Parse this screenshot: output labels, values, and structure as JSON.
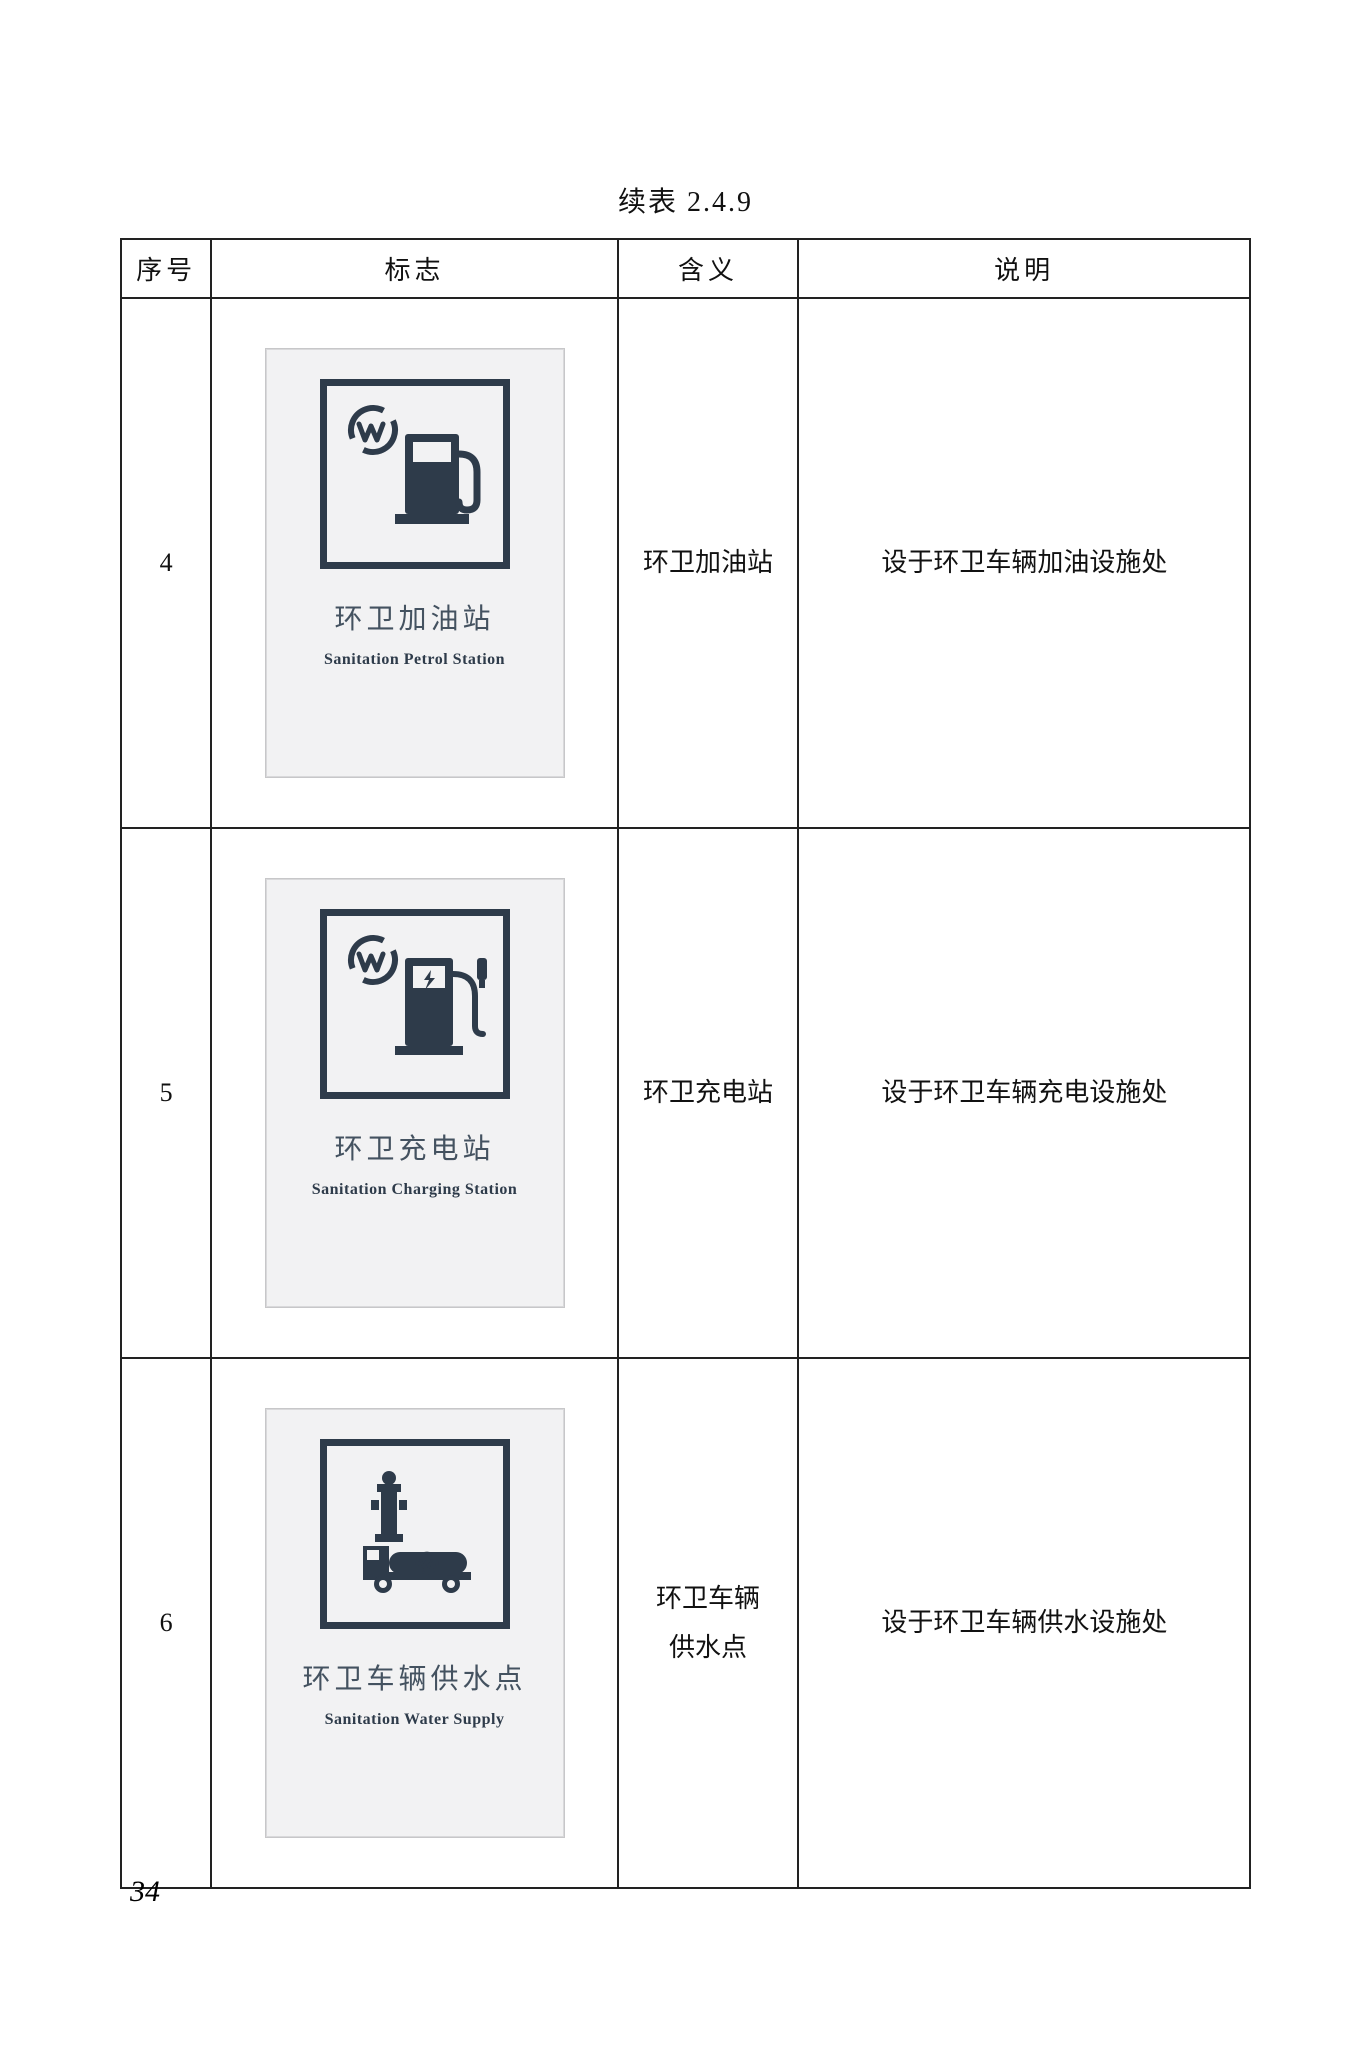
{
  "caption": "续表 2.4.9",
  "page_number": "34",
  "headers": {
    "num": "序号",
    "sign": "标志",
    "mean": "含义",
    "desc": "说明"
  },
  "rows": [
    {
      "num": "4",
      "sign_cn": "环卫加油站",
      "sign_en": "Sanitation Petrol Station",
      "mean": "环卫加油站",
      "desc": "设于环卫车辆加油设施处",
      "icon": "petrol"
    },
    {
      "num": "5",
      "sign_cn": "环卫充电站",
      "sign_en": "Sanitation Charging Station",
      "mean": "环卫充电站",
      "desc": "设于环卫车辆充电设施处",
      "icon": "charging"
    },
    {
      "num": "6",
      "sign_cn": "环卫车辆供水点",
      "sign_en": "Sanitation Water Supply",
      "mean": "环卫车辆\n供水点",
      "desc": "设于环卫车辆供水设施处",
      "icon": "water"
    }
  ],
  "colors": {
    "ink": "#2e3b4a",
    "sign_bg": "#f2f2f3",
    "sign_border": "#c7c7c9",
    "text": "#111111"
  }
}
